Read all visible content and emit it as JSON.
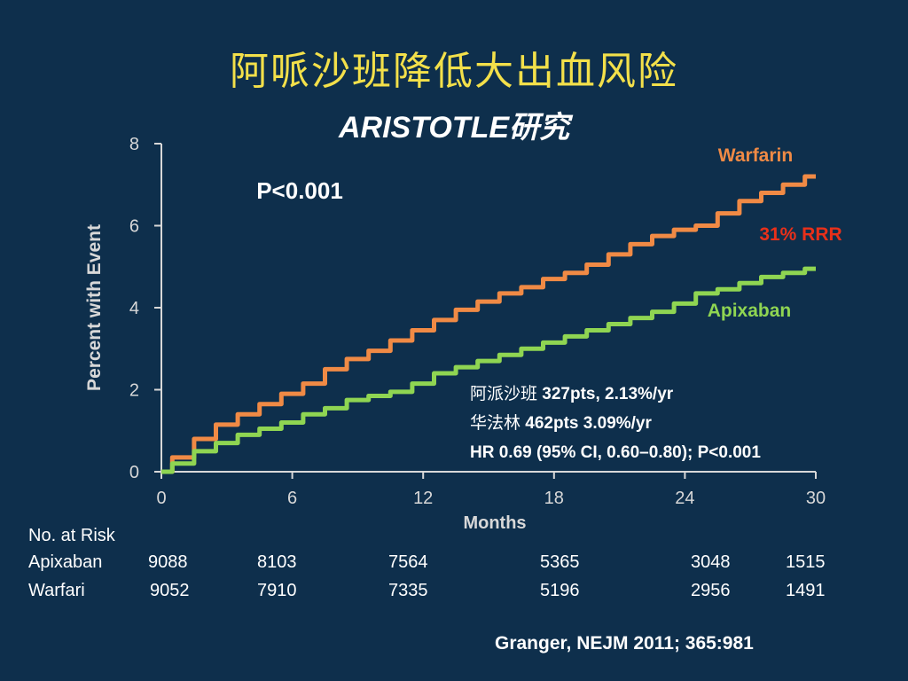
{
  "slide": {
    "title": "阿哌沙班降低大出血风险",
    "subtitle": "ARISTOTLE研究",
    "citation": "Granger, NEJM 2011; 365:981"
  },
  "colors": {
    "background": "#0e2f4c",
    "title": "#f3e04a",
    "warfarin": "#f08a45",
    "apixaban": "#8fd552",
    "rrr": "#e8301a",
    "axis": "#d8d8d8"
  },
  "chart_data": {
    "type": "line",
    "xlabel": "Months",
    "ylabel": "Percent with Event",
    "xlim": [
      0,
      30
    ],
    "ylim": [
      0,
      8
    ],
    "xticks": [
      "0",
      "6",
      "12",
      "18",
      "24",
      "30"
    ],
    "yticks": [
      "0",
      "2",
      "4",
      "6",
      "8"
    ],
    "grid": false,
    "pvalue": "P<0.001",
    "annotation_rrr": "31% RRR",
    "series": [
      {
        "name": "Warfarin",
        "x": [
          0,
          1,
          2,
          3,
          4,
          5,
          6,
          7,
          8,
          9,
          10,
          11,
          12,
          13,
          14,
          15,
          16,
          17,
          18,
          19,
          20,
          21,
          22,
          23,
          24,
          25,
          26,
          27,
          28,
          29,
          30
        ],
        "y": [
          0,
          0.35,
          0.8,
          1.15,
          1.4,
          1.65,
          1.9,
          2.15,
          2.5,
          2.75,
          2.95,
          3.2,
          3.45,
          3.7,
          3.95,
          4.15,
          4.35,
          4.5,
          4.7,
          4.85,
          5.05,
          5.3,
          5.55,
          5.75,
          5.9,
          6.0,
          6.3,
          6.6,
          6.8,
          7.0,
          7.2
        ]
      },
      {
        "name": "Apixaban",
        "x": [
          0,
          1,
          2,
          3,
          4,
          5,
          6,
          7,
          8,
          9,
          10,
          11,
          12,
          13,
          14,
          15,
          16,
          17,
          18,
          19,
          20,
          21,
          22,
          23,
          24,
          25,
          26,
          27,
          28,
          29,
          30
        ],
        "y": [
          0,
          0.2,
          0.5,
          0.7,
          0.9,
          1.05,
          1.2,
          1.4,
          1.55,
          1.75,
          1.85,
          1.95,
          2.15,
          2.4,
          2.55,
          2.7,
          2.85,
          3.0,
          3.15,
          3.3,
          3.45,
          3.6,
          3.75,
          3.9,
          4.1,
          4.35,
          4.45,
          4.6,
          4.75,
          4.85,
          4.95
        ]
      }
    ]
  },
  "stats": {
    "apixaban_cn": "阿派沙班",
    "apixaban_val": "327pts, 2.13%/yr",
    "warfarin_cn": "华法林",
    "warfarin_val": "462pts 3.09%/yr",
    "hr": "HR 0.69 (95% CI, 0.60–0.80); P<0.001"
  },
  "risk_table": {
    "heading": "No. at Risk",
    "rows": [
      {
        "label": "Apixaban",
        "values": [
          "9088",
          "8103",
          "7564",
          "5365",
          "3048",
          "1515"
        ]
      },
      {
        "label": "Warfari",
        "values": [
          "9052",
          "7910",
          "7335",
          "5196",
          "2956",
          "1491"
        ]
      }
    ]
  }
}
